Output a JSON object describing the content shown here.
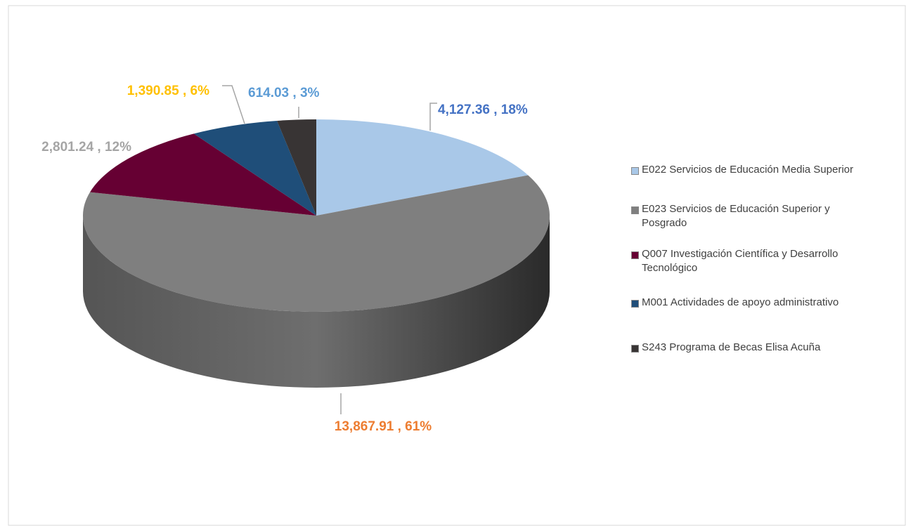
{
  "chart_data": {
    "type": "pie",
    "categories": [
      "E022 Servicios de Educación Media Superior",
      "E023 Servicios de Educación Superior y Posgrado",
      "Q007 Investigación Científica y Desarrollo Tecnológico",
      "M001 Actividades de apoyo administrativo",
      "S243 Programa de Becas Elisa Acuña"
    ],
    "values": [
      4127.36,
      13867.91,
      2801.24,
      1390.85,
      614.03
    ],
    "value_labels": [
      "4,127.36 , 18%",
      "13,867.91 , 61%",
      "2,801.24 , 12%",
      "1,390.85 , 6%",
      "614.03 , 3%"
    ],
    "colors": [
      "#a9c8e8",
      "#7f7f7f",
      "#660033",
      "#1f4e79",
      "#383434"
    ],
    "label_colors": [
      "#4472c4",
      "#ed7d31",
      "#a5a5a5",
      "#ffc000",
      "#5b9bd5"
    ],
    "legend": "right"
  }
}
